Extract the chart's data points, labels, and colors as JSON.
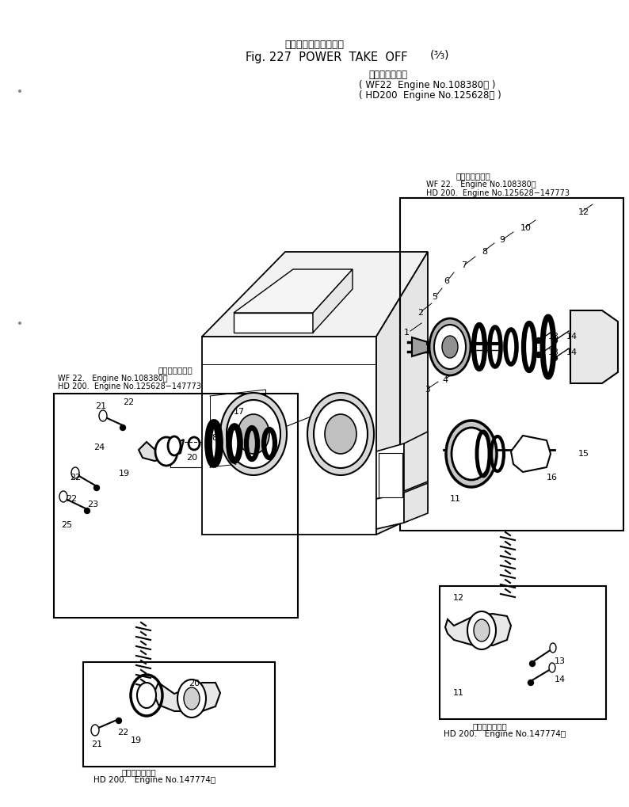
{
  "title_jp": "パワー　テーク　オフ",
  "title_en": "Fig. 227  POWER  TAKE  OFF",
  "title_fraction": "(³⁄₃)",
  "sub_jp": "適　用　号　機",
  "sub1": "( WF22  Engine No.108380～ )",
  "sub2": "( HD200  Engine No.125628～ )",
  "tr_jp": "適　用　号　機",
  "tr1": "WF 22.   Engine No.108380～",
  "tr2": "HD 200.  Engine No.125628−147773",
  "lb_jp": "適　用　号　機",
  "lb1": "WF 22.   Engine No.108380～",
  "lb2": "HD 200.  Engine No.125628−147773",
  "bl_jp": "適　用　号　機",
  "bl1": "HD 200.   Engine No.147774～",
  "br_jp": "適　用　号　機",
  "br1": "HD 200.   Engine No.147774～",
  "bg": "#ffffff"
}
